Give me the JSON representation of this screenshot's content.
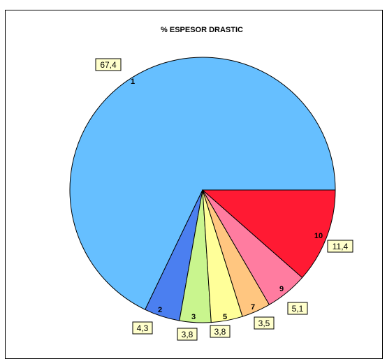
{
  "chart_data": {
    "type": "pie",
    "title": "% ESPESOR DRASTIC",
    "slices": [
      {
        "label": "1",
        "value": 67.4,
        "value_label": "67,4",
        "color": "#66bfff"
      },
      {
        "label": "2",
        "value": 4.3,
        "value_label": "4,3",
        "color": "#4b7ff0"
      },
      {
        "label": "3",
        "value": 3.8,
        "value_label": "3,8",
        "color": "#c9f58e"
      },
      {
        "label": "5",
        "value": 3.8,
        "value_label": "3,8",
        "color": "#ffff99"
      },
      {
        "label": "7",
        "value": 3.5,
        "value_label": "3,5",
        "color": "#ffc680"
      },
      {
        "label": "9",
        "value": 5.1,
        "value_label": "5,1",
        "color": "#ff7ca0"
      },
      {
        "label": "10",
        "value": 11.4,
        "value_label": "11,4",
        "color": "#ff1a33"
      }
    ],
    "start_angle_deg": 0,
    "direction": "counterclockwise-from-3-oclock",
    "legend": "none"
  }
}
